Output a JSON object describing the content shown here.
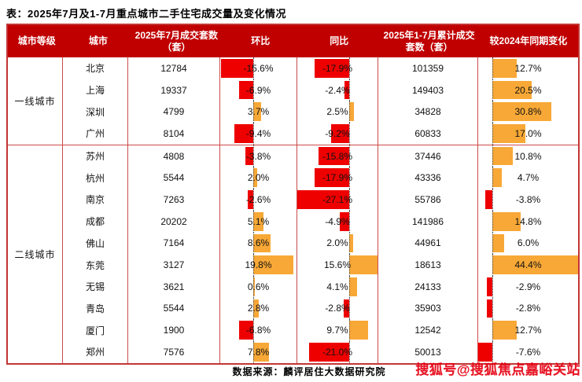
{
  "colors": {
    "header_bg": "#C00000",
    "positive_bar": "#F8A836",
    "negative_bar": "#EE0000",
    "grid_border": "#CC4B4B",
    "watermark_red": "#E60012"
  },
  "footer": {
    "source": "数据来源：麟评居住大数据研究院"
  },
  "watermark": "搜狐号@搜狐焦点嘉峪关站",
  "chart_data": {
    "type": "table",
    "title": "表：2025年7月及1-7月重点城市二手住宅成交量及变化情况",
    "columns": [
      "城市等级",
      "城市",
      "2025年7月成交套数（套）",
      "环比",
      "同比",
      "2025年1-7月累计成交套数（套）",
      "较2024年同期变化"
    ],
    "bar_columns_note": "环比 / 同比 / 较2024年同期变化 are in-cell bar charts: negative = red bar left of dotted zero axis, positive = orange bar right of dotted zero axis; values in percent",
    "groups": [
      {
        "tier": "一线城市",
        "rows": [
          {
            "city": "北京",
            "jul": 12784,
            "mom": -15.6,
            "yoy": -17.9,
            "cum": 101359,
            "vs": 12.7
          },
          {
            "city": "上海",
            "jul": 19337,
            "mom": -6.9,
            "yoy": -2.4,
            "cum": 149403,
            "vs": 20.5
          },
          {
            "city": "深圳",
            "jul": 4799,
            "mom": 3.7,
            "yoy": 2.5,
            "cum": 34828,
            "vs": 30.8
          },
          {
            "city": "广州",
            "jul": 8104,
            "mom": -9.4,
            "yoy": -9.2,
            "cum": 60833,
            "vs": 17.0
          }
        ]
      },
      {
        "tier": "二线城市",
        "rows": [
          {
            "city": "苏州",
            "jul": 4808,
            "mom": -3.8,
            "yoy": -15.8,
            "cum": 37446,
            "vs": 10.8
          },
          {
            "city": "杭州",
            "jul": 5544,
            "mom": 2.0,
            "yoy": -17.9,
            "cum": 43336,
            "vs": 4.7
          },
          {
            "city": "南京",
            "jul": 7263,
            "mom": -2.6,
            "yoy": -27.1,
            "cum": 55786,
            "vs": -3.8
          },
          {
            "city": "成都",
            "jul": 20202,
            "mom": 5.1,
            "yoy": -4.9,
            "cum": 141986,
            "vs": 14.8
          },
          {
            "city": "佛山",
            "jul": 7164,
            "mom": 8.6,
            "yoy": 2.0,
            "cum": 44961,
            "vs": 6.0
          },
          {
            "city": "东莞",
            "jul": 3127,
            "mom": 19.8,
            "yoy": 15.6,
            "cum": 18613,
            "vs": 44.4
          },
          {
            "city": "无锡",
            "jul": 3621,
            "mom": 0.6,
            "yoy": 4.1,
            "cum": 24133,
            "vs": -2.9
          },
          {
            "city": "青岛",
            "jul": 5544,
            "mom": 2.8,
            "yoy": -2.8,
            "cum": 35903,
            "vs": -2.8
          },
          {
            "city": "厦门",
            "jul": 1900,
            "mom": -6.8,
            "yoy": 9.7,
            "cum": 12542,
            "vs": 12.7
          },
          {
            "city": "郑州",
            "jul": 7576,
            "mom": 7.8,
            "yoy": -21.0,
            "cum": 50013,
            "vs": -7.6
          }
        ]
      }
    ]
  }
}
